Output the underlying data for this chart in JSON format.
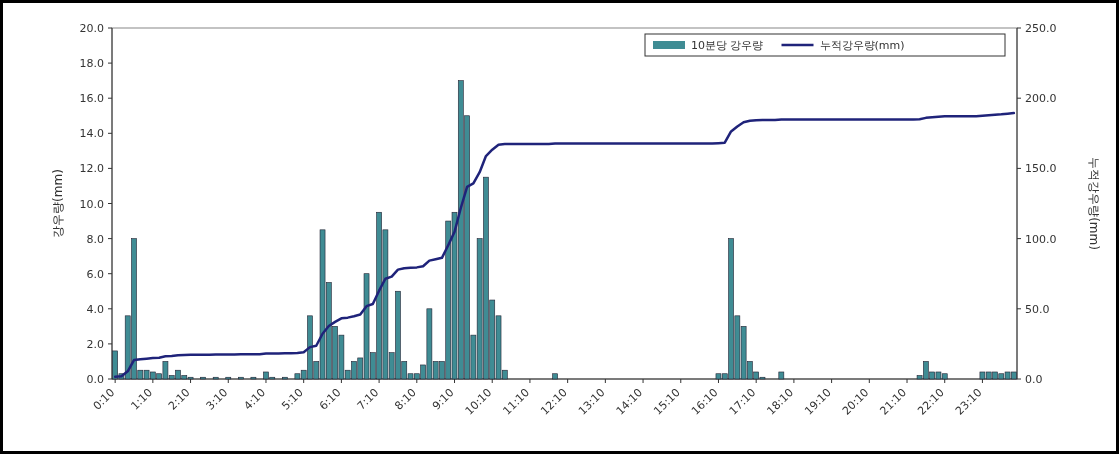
{
  "chart_data": {
    "type": "bar",
    "ylabel": "강우량(mm)",
    "y2label": "누적강우량(mm)",
    "categories": [
      "0:10",
      null,
      null,
      null,
      null,
      null,
      "1:10",
      null,
      null,
      null,
      null,
      null,
      "2:10",
      null,
      null,
      null,
      null,
      null,
      "3:10",
      null,
      null,
      null,
      null,
      null,
      "4:10",
      null,
      null,
      null,
      null,
      null,
      "5:10",
      null,
      null,
      null,
      null,
      null,
      "6:10",
      null,
      null,
      null,
      null,
      null,
      "7:10",
      null,
      null,
      null,
      null,
      null,
      "8:10",
      null,
      null,
      null,
      null,
      null,
      "9:10",
      null,
      null,
      null,
      null,
      null,
      "10:10",
      null,
      null,
      null,
      null,
      null,
      "11:10",
      null,
      null,
      null,
      null,
      null,
      "12:10",
      null,
      null,
      null,
      null,
      null,
      "13:10",
      null,
      null,
      null,
      null,
      null,
      "14:10",
      null,
      null,
      null,
      null,
      null,
      "15:10",
      null,
      null,
      null,
      null,
      null,
      "16:10",
      null,
      null,
      null,
      null,
      null,
      "17:10",
      null,
      null,
      null,
      null,
      null,
      "18:10",
      null,
      null,
      null,
      null,
      null,
      "19:10",
      null,
      null,
      null,
      null,
      null,
      "20:10",
      null,
      null,
      null,
      null,
      null,
      "21:10",
      null,
      null,
      null,
      null,
      null,
      "22:10",
      null,
      null,
      null,
      null,
      null,
      "23:10",
      null,
      null,
      null,
      null,
      null
    ],
    "series": [
      {
        "name": "10분당 강우량",
        "color": "#3f8c94",
        "values": [
          1.6,
          0.3,
          3.6,
          8.0,
          0.5,
          0.5,
          0.4,
          0.3,
          1.0,
          0.2,
          0.5,
          0.2,
          0.1,
          0,
          0.1,
          0,
          0.1,
          0,
          0.1,
          0,
          0.1,
          0,
          0.1,
          0,
          0.4,
          0.1,
          0,
          0.1,
          0,
          0.3,
          0.5,
          3.6,
          1.0,
          8.5,
          5.5,
          3.0,
          2.5,
          0.5,
          1.0,
          1.2,
          6.0,
          1.5,
          9.5,
          8.5,
          1.5,
          5.0,
          1.0,
          0.3,
          0.3,
          0.8,
          4.0,
          1.0,
          1.0,
          9.0,
          9.5,
          17.0,
          15.0,
          2.5,
          8.0,
          11.5,
          4.5,
          3.6,
          0.5,
          0,
          0,
          0,
          0,
          0,
          0,
          0,
          0.3,
          0,
          0,
          0,
          0,
          0,
          0,
          0,
          0,
          0,
          0,
          0,
          0,
          0,
          0,
          0,
          0,
          0,
          0,
          0,
          0,
          0,
          0,
          0,
          0,
          0,
          0.3,
          0.3,
          8.0,
          3.6,
          3.0,
          1.0,
          0.4,
          0.1,
          0,
          0,
          0.4,
          0,
          0,
          0,
          0,
          0,
          0,
          0,
          0,
          0,
          0,
          0,
          0,
          0,
          0,
          0,
          0,
          0,
          0,
          0,
          0,
          0,
          0.2,
          1.0,
          0.4,
          0.4,
          0.3,
          0,
          0,
          0,
          0,
          0,
          0.4,
          0.4,
          0.4,
          0.3,
          0.4,
          0.4
        ]
      },
      {
        "name": "누적강우량(mm)",
        "type": "line",
        "axis": "y2",
        "color": "#1f237a",
        "values": [
          1.6,
          1.9,
          5.5,
          13.5,
          14.0,
          14.5,
          14.9,
          15.2,
          16.2,
          16.4,
          16.9,
          17.1,
          17.2,
          17.2,
          17.3,
          17.3,
          17.4,
          17.4,
          17.5,
          17.5,
          17.6,
          17.6,
          17.7,
          17.7,
          18.1,
          18.2,
          18.2,
          18.3,
          18.3,
          18.6,
          19.1,
          22.7,
          23.7,
          32.2,
          37.7,
          40.7,
          43.2,
          43.7,
          44.7,
          45.9,
          51.9,
          53.4,
          62.9,
          71.4,
          72.9,
          77.9,
          78.9,
          79.2,
          79.5,
          80.3,
          84.3,
          85.3,
          86.3,
          95.3,
          104.8,
          121.8,
          136.8,
          139.3,
          147.3,
          158.8,
          163.3,
          166.9,
          167.4,
          167.4,
          167.4,
          167.4,
          167.4,
          167.4,
          167.4,
          167.4,
          167.7,
          167.7,
          167.7,
          167.7,
          167.7,
          167.7,
          167.7,
          167.7,
          167.7,
          167.7,
          167.7,
          167.7,
          167.7,
          167.7,
          167.7,
          167.7,
          167.7,
          167.7,
          167.7,
          167.7,
          167.7,
          167.7,
          167.7,
          167.7,
          167.7,
          167.7,
          168.0,
          168.3,
          176.3,
          179.9,
          182.9,
          183.9,
          184.3,
          184.4,
          184.4,
          184.4,
          184.8,
          184.8,
          184.8,
          184.8,
          184.8,
          184.8,
          184.8,
          184.8,
          184.8,
          184.8,
          184.8,
          184.8,
          184.8,
          184.8,
          184.8,
          184.8,
          184.8,
          184.8,
          184.8,
          184.8,
          184.8,
          184.8,
          185.0,
          186.0,
          186.4,
          186.8,
          187.1,
          187.1,
          187.1,
          187.1,
          187.1,
          187.1,
          187.5,
          187.9,
          188.3,
          188.6,
          189.0,
          189.4
        ]
      }
    ],
    "ylim": [
      0,
      20
    ],
    "yticks": [
      {
        "value": 0,
        "label": "0.0"
      },
      {
        "value": 2,
        "label": "2.0"
      },
      {
        "value": 4,
        "label": "4.0"
      },
      {
        "value": 6,
        "label": "6.0"
      },
      {
        "value": 8,
        "label": "8.0"
      },
      {
        "value": 10,
        "label": "10.0"
      },
      {
        "value": 12,
        "label": "12.0"
      },
      {
        "value": 14,
        "label": "14.0"
      },
      {
        "value": 16,
        "label": "16.0"
      },
      {
        "value": 18,
        "label": "18.0"
      },
      {
        "value": 20,
        "label": "20.0"
      }
    ],
    "y2lim": [
      0,
      250
    ],
    "y2ticks": [
      {
        "value": 0,
        "label": "0.0"
      },
      {
        "value": 50,
        "label": "50.0"
      },
      {
        "value": 100,
        "label": "100.0"
      },
      {
        "value": 150,
        "label": "150.0"
      },
      {
        "value": 200,
        "label": "200.0"
      },
      {
        "value": 250,
        "label": "250.0"
      }
    ],
    "legend": "top right"
  }
}
